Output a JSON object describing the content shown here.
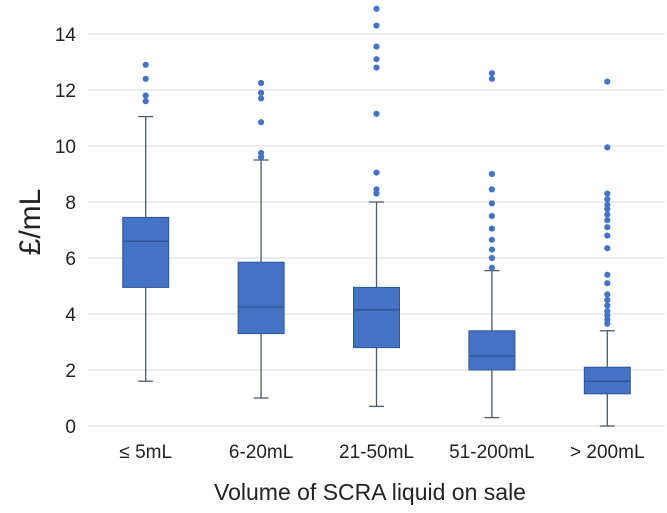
{
  "chart_data": {
    "type": "boxplot",
    "title": "",
    "xlabel": "Volume of SCRA liquid on sale",
    "ylabel": "£/mL",
    "ylim": [
      0,
      15
    ],
    "yticks": [
      0,
      2,
      4,
      6,
      8,
      10,
      12,
      14
    ],
    "grid": true,
    "categories": [
      "≤ 5mL",
      "6-20mL",
      "21-50mL",
      "51-200mL",
      "> 200mL"
    ],
    "boxes": [
      {
        "category": "≤ 5mL",
        "whisker_low": 1.6,
        "q1": 4.95,
        "median": 6.6,
        "q3": 7.45,
        "whisker_high": 11.05,
        "outliers": [
          11.6,
          11.8,
          12.4,
          12.9
        ]
      },
      {
        "category": "6-20mL",
        "whisker_low": 1.0,
        "q1": 3.3,
        "median": 4.25,
        "q3": 5.85,
        "whisker_high": 9.5,
        "outliers": [
          9.6,
          9.75,
          10.85,
          11.7,
          11.9,
          12.25
        ]
      },
      {
        "category": "21-50mL",
        "whisker_low": 0.7,
        "q1": 2.8,
        "median": 4.15,
        "q3": 4.95,
        "whisker_high": 8.0,
        "outliers": [
          8.3,
          8.45,
          9.05,
          11.15,
          12.8,
          13.1,
          13.55,
          14.3,
          14.9
        ]
      },
      {
        "category": "51-200mL",
        "whisker_low": 0.3,
        "q1": 2.0,
        "median": 2.5,
        "q3": 3.4,
        "whisker_high": 5.55,
        "outliers": [
          5.65,
          6.0,
          6.3,
          6.65,
          7.05,
          7.5,
          7.95,
          8.45,
          9.0,
          12.4,
          12.6
        ]
      },
      {
        "category": "> 200mL",
        "whisker_low": 0.0,
        "q1": 1.15,
        "median": 1.6,
        "q3": 2.1,
        "whisker_high": 3.4,
        "outliers": [
          3.65,
          3.8,
          3.95,
          4.1,
          4.3,
          4.5,
          4.7,
          5.1,
          5.4,
          6.35,
          6.8,
          7.1,
          7.35,
          7.55,
          7.75,
          7.9,
          8.1,
          8.3,
          9.95,
          12.3
        ]
      }
    ],
    "colors": {
      "box": "#4472C4",
      "box_edge": "#2F5597",
      "whisker": "#4D5A6B",
      "grid": "#D9D9D9",
      "outlier": "#4472C4"
    }
  }
}
